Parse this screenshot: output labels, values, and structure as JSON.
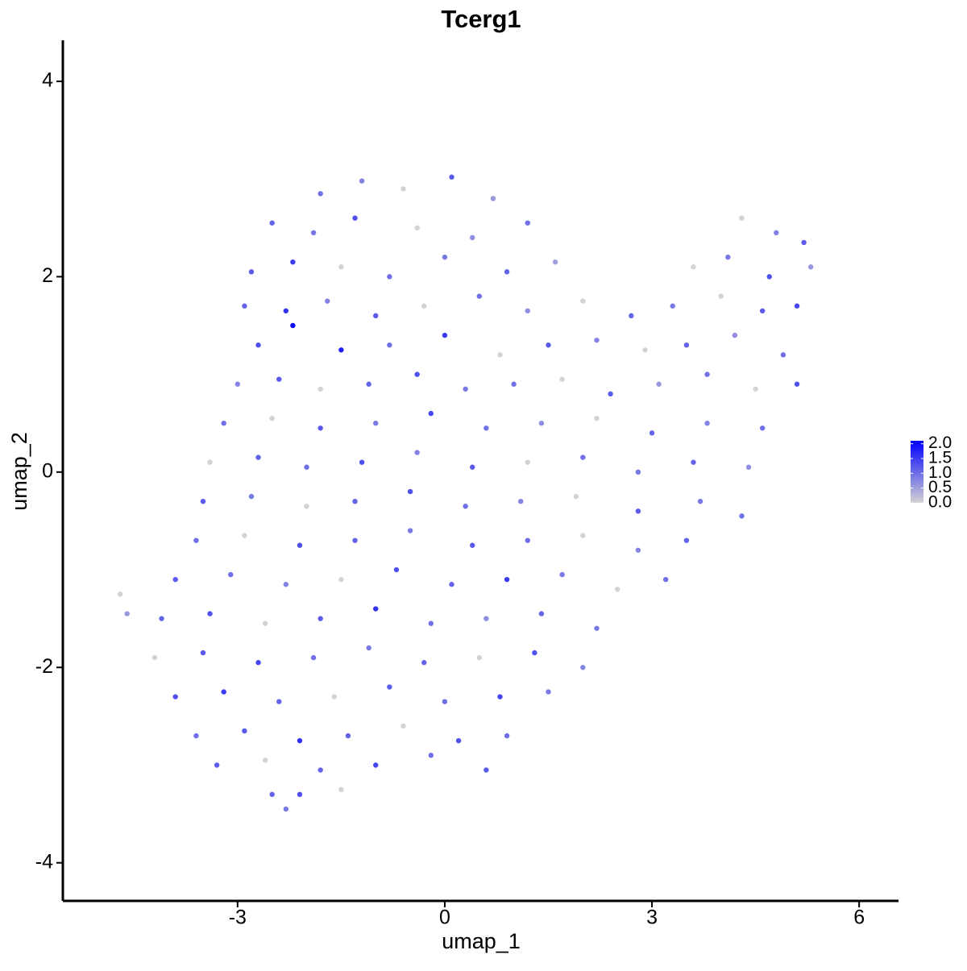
{
  "chart_data": {
    "type": "scatter",
    "title": "Tcerg1",
    "x_label": "umap_1",
    "y_label": "umap_2",
    "xlim": [
      -5.53,
      6.57
    ],
    "xticks": [
      -3,
      0,
      3,
      6
    ],
    "ylim": [
      -4.39,
      4.42
    ],
    "yticks": [
      -4,
      -2,
      0,
      2,
      4
    ],
    "colorbar": {
      "low_color": "#d3d3d3",
      "high_color": "#0000ff",
      "lim": [
        0,
        2.1
      ],
      "ticks": [
        {
          "value": 0,
          "label": "0.0"
        },
        {
          "value": 0.5,
          "label": "0.5"
        },
        {
          "value": 1,
          "label": "1.0"
        },
        {
          "value": 1.5,
          "label": "1.5"
        },
        {
          "value": 2,
          "label": "2.0"
        }
      ]
    },
    "x": [
      -1.8,
      -1.2,
      -0.6,
      0.1,
      0.7,
      -2.5,
      -1.9,
      -1.3,
      -0.4,
      0.4,
      1.2,
      4.3,
      4.8,
      5.2,
      -2.8,
      -2.2,
      -1.5,
      -0.8,
      0,
      0.9,
      1.6,
      3.6,
      4.1,
      4.7,
      5.3,
      -2.9,
      -2.3,
      -1.7,
      -1,
      -0.3,
      0.5,
      1.2,
      2,
      2.7,
      3.3,
      4,
      4.6,
      5.1,
      -2.7,
      -2.2,
      -1.5,
      -0.8,
      0,
      0.8,
      1.5,
      2.2,
      2.9,
      3.5,
      4.2,
      4.9,
      -3,
      -2.4,
      -1.8,
      -1.1,
      -0.4,
      0.3,
      1,
      1.7,
      2.4,
      3.1,
      3.8,
      4.5,
      5.1,
      -3.2,
      -2.5,
      -1.8,
      -1,
      -0.2,
      0.6,
      1.4,
      2.2,
      3,
      3.8,
      4.6,
      -3.4,
      -2.7,
      -2,
      -1.2,
      -0.4,
      0.4,
      1.2,
      2,
      2.8,
      3.6,
      4.4,
      -3.5,
      -2.8,
      -2,
      -1.3,
      -0.5,
      0.3,
      1.1,
      1.9,
      2.8,
      3.7,
      4.3,
      -3.6,
      -2.9,
      -2.1,
      -1.3,
      -0.5,
      0.4,
      1.2,
      2,
      2.8,
      3.5,
      -3.9,
      -3.1,
      -2.3,
      -1.5,
      -0.7,
      0.1,
      0.9,
      1.7,
      2.5,
      3.2,
      -4.7,
      -4.6,
      -4.1,
      -3.4,
      -2.6,
      -1.8,
      -1,
      -0.2,
      0.6,
      1.4,
      2.2,
      -4.2,
      -3.5,
      -2.7,
      -1.9,
      -1.1,
      -0.3,
      0.5,
      1.3,
      2,
      -3.9,
      -3.2,
      -2.4,
      -1.6,
      -0.8,
      0,
      0.8,
      1.5,
      -3.6,
      -2.9,
      -2.1,
      -1.4,
      -0.6,
      0.2,
      0.9,
      -3.3,
      -2.6,
      -1.8,
      -1,
      -0.2,
      0.6,
      -2.5,
      -2.1,
      -1.5,
      -2.3
    ],
    "y": [
      2.85,
      2.98,
      2.9,
      3.02,
      2.8,
      2.55,
      2.45,
      2.6,
      2.5,
      2.4,
      2.55,
      2.6,
      2.45,
      2.35,
      2.05,
      2.15,
      2.1,
      2.0,
      2.2,
      2.05,
      2.15,
      2.1,
      2.2,
      2.0,
      2.1,
      1.7,
      1.65,
      1.75,
      1.6,
      1.7,
      1.8,
      1.65,
      1.75,
      1.6,
      1.7,
      1.8,
      1.65,
      1.7,
      1.3,
      1.5,
      1.25,
      1.3,
      1.4,
      1.2,
      1.3,
      1.35,
      1.25,
      1.3,
      1.4,
      1.2,
      0.9,
      0.95,
      0.85,
      0.9,
      1.0,
      0.85,
      0.9,
      0.95,
      0.8,
      0.9,
      1.0,
      0.85,
      0.9,
      0.5,
      0.55,
      0.45,
      0.5,
      0.6,
      0.45,
      0.5,
      0.55,
      0.4,
      0.5,
      0.45,
      0.1,
      0.15,
      0.05,
      0.1,
      0.2,
      0.05,
      0.1,
      0.15,
      0.0,
      0.1,
      0.05,
      -0.3,
      -0.25,
      -0.35,
      -0.3,
      -0.2,
      -0.35,
      -0.3,
      -0.25,
      -0.4,
      -0.3,
      -0.45,
      -0.7,
      -0.65,
      -0.75,
      -0.7,
      -0.6,
      -0.75,
      -0.7,
      -0.65,
      -0.8,
      -0.7,
      -1.1,
      -1.05,
      -1.15,
      -1.1,
      -1.0,
      -1.15,
      -1.1,
      -1.05,
      -1.2,
      -1.1,
      -1.25,
      -1.45,
      -1.5,
      -1.45,
      -1.55,
      -1.5,
      -1.4,
      -1.55,
      -1.5,
      -1.45,
      -1.6,
      -1.9,
      -1.85,
      -1.95,
      -1.9,
      -1.8,
      -1.95,
      -1.9,
      -1.85,
      -2.0,
      -2.3,
      -2.25,
      -2.35,
      -2.3,
      -2.2,
      -2.35,
      -2.3,
      -2.25,
      -2.7,
      -2.65,
      -2.75,
      -2.7,
      -2.6,
      -2.75,
      -2.7,
      -3.0,
      -2.95,
      -3.05,
      -3.0,
      -2.9,
      -3.05,
      -3.3,
      -3.3,
      -3.25,
      -3.45
    ],
    "expression": [
      1.0,
      0.8,
      0,
      1.2,
      0.6,
      1.1,
      0.9,
      1.3,
      0,
      0.7,
      1.0,
      0,
      0.8,
      1.2,
      1.2,
      1.5,
      0,
      1.0,
      0.9,
      1.1,
      0.5,
      0,
      0.9,
      1.3,
      0.6,
      1.1,
      1.6,
      0.8,
      1.2,
      0,
      1.0,
      0.7,
      0,
      1.1,
      0.9,
      0,
      1.2,
      1.4,
      1.3,
      2.0,
      1.8,
      1.0,
      1.5,
      0,
      1.2,
      0.8,
      0,
      1.1,
      0.7,
      1.0,
      0.8,
      1.2,
      0,
      1.1,
      1.3,
      0.9,
      1.0,
      0,
      1.2,
      0.6,
      1.0,
      0,
      1.3,
      1.0,
      0,
      1.2,
      0.9,
      1.4,
      1.0,
      0.7,
      0,
      1.1,
      0.8,
      1.0,
      0,
      1.1,
      1.0,
      1.3,
      0.8,
      1.2,
      0,
      1.0,
      0.9,
      1.1,
      0.7,
      1.2,
      0.9,
      0,
      1.1,
      1.3,
      1.0,
      0.8,
      0,
      1.2,
      0.9,
      1.0,
      1.0,
      0,
      1.3,
      1.1,
      0.9,
      1.2,
      1.0,
      0,
      0.8,
      1.1,
      1.2,
      1.0,
      0.8,
      0,
      1.3,
      1.1,
      1.5,
      0.9,
      0,
      1.0,
      0,
      0.6,
      1.1,
      1.3,
      0,
      1.2,
      1.6,
      1.0,
      0.7,
      1.1,
      0.9,
      0,
      1.2,
      1.4,
      1.0,
      0.9,
      1.1,
      0,
      1.3,
      0.8,
      1.3,
      1.5,
      1.1,
      0,
      1.2,
      1.0,
      1.4,
      0.9,
      1.0,
      1.2,
      1.6,
      1.1,
      0,
      1.3,
      1.0,
      1.2,
      0,
      1.1,
      1.4,
      1.0,
      1.2,
      1.1,
      1.3,
      0,
      0.9
    ]
  }
}
